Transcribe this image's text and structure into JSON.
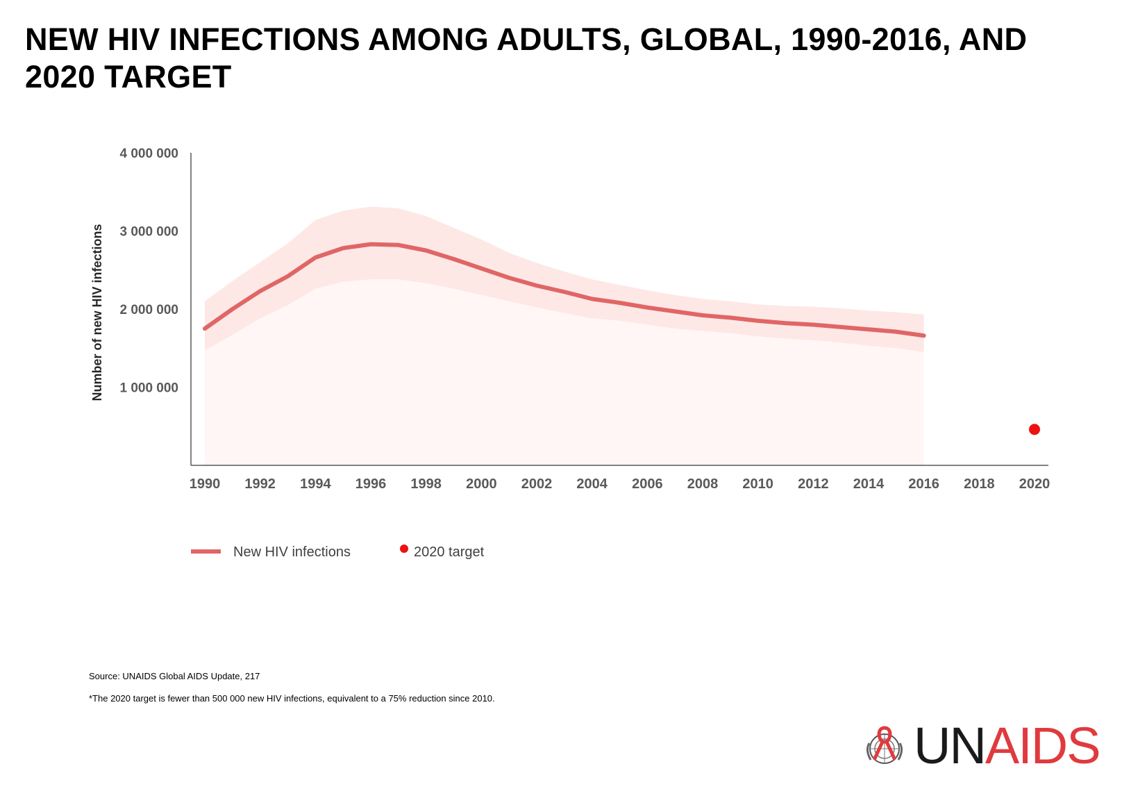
{
  "title": "NEW HIV INFECTIONS AMONG ADULTS, GLOBAL, 1990-2016, AND 2020 TARGET",
  "source": "Source: UNAIDS  Global AIDS Update, 217",
  "footnote": "*The 2020 target is fewer than 500 000 new HIV infections, equivalent to a 75% reduction since 2010.",
  "logo": {
    "prefix": "UN",
    "suffix": "AIDS",
    "emblem": "un-emblem-red-ribbon-icon"
  },
  "colors": {
    "line": "#e06666",
    "band": "#fde8e6",
    "target": "#ee1111",
    "axis": "#595959"
  },
  "chart_data": {
    "type": "line",
    "title": "",
    "xlabel": "",
    "ylabel": "Number of new HIV infections",
    "xlim": [
      1990,
      2020
    ],
    "ylim": [
      0,
      4000000
    ],
    "xticks": [
      "1990",
      "1992",
      "1994",
      "1996",
      "1998",
      "2000",
      "2002",
      "2004",
      "2006",
      "2008",
      "2010",
      "2012",
      "2014",
      "2016",
      "2018",
      "2020"
    ],
    "yticks": [
      "1 000 000",
      "2 000 000",
      "3 000 000",
      "4 000 000"
    ],
    "ytick_values": [
      1000000,
      2000000,
      3000000,
      4000000
    ],
    "legend": [
      "New HIV infections",
      "2020 target"
    ],
    "series": [
      {
        "name": "New HIV infections",
        "x": [
          1990,
          1991,
          1992,
          1993,
          1994,
          1995,
          1996,
          1997,
          1998,
          1999,
          2000,
          2001,
          2002,
          2003,
          2004,
          2005,
          2006,
          2007,
          2008,
          2009,
          2010,
          2011,
          2012,
          2013,
          2014,
          2015,
          2016
        ],
        "y": [
          1750000,
          2000000,
          2230000,
          2420000,
          2660000,
          2780000,
          2830000,
          2820000,
          2750000,
          2640000,
          2520000,
          2400000,
          2300000,
          2220000,
          2130000,
          2080000,
          2020000,
          1970000,
          1920000,
          1890000,
          1850000,
          1820000,
          1800000,
          1770000,
          1740000,
          1710000,
          1660000
        ],
        "lower": [
          1470000,
          1670000,
          1880000,
          2050000,
          2260000,
          2350000,
          2380000,
          2380000,
          2330000,
          2260000,
          2180000,
          2100000,
          2020000,
          1950000,
          1880000,
          1850000,
          1800000,
          1750000,
          1720000,
          1690000,
          1650000,
          1620000,
          1600000,
          1570000,
          1530000,
          1500000,
          1450000
        ],
        "upper": [
          2100000,
          2360000,
          2600000,
          2840000,
          3140000,
          3260000,
          3310000,
          3290000,
          3190000,
          3040000,
          2890000,
          2720000,
          2590000,
          2480000,
          2380000,
          2310000,
          2240000,
          2180000,
          2130000,
          2100000,
          2060000,
          2040000,
          2030000,
          2010000,
          1980000,
          1960000,
          1930000
        ]
      },
      {
        "name": "2020 target",
        "x": [
          2020
        ],
        "y": [
          460000
        ]
      }
    ]
  }
}
